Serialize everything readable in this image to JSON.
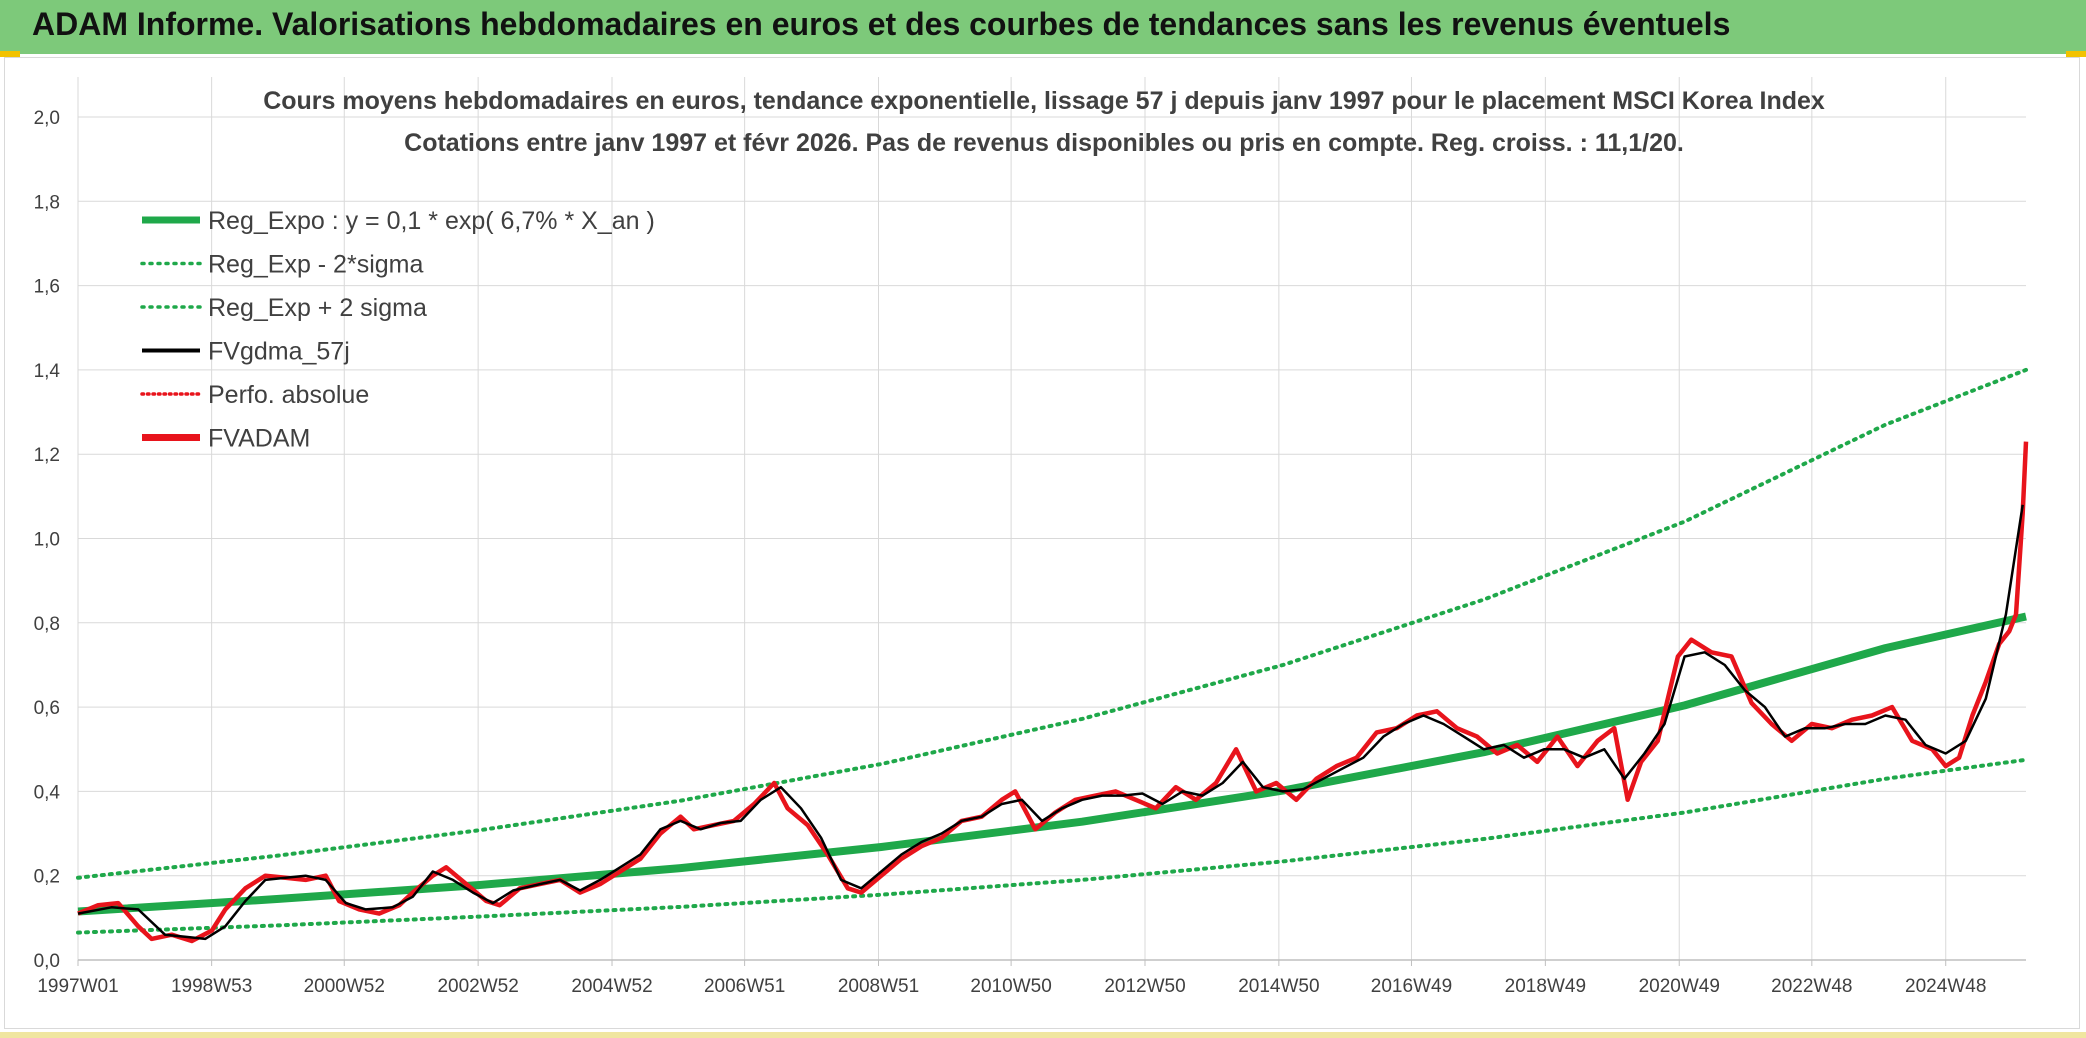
{
  "header": {
    "title": "ADAM Informe. Valorisations hebdomadaires en euros et des courbes de tendances sans les revenus éventuels"
  },
  "colors": {
    "banner": "#7dc97a",
    "regression": "#1fa84a",
    "smoothed": "#000000",
    "price": "#e8141c",
    "grid": "#d9d9d9"
  },
  "chart_data": {
    "type": "line",
    "title": "Cours moyens hebdomadaires en euros, tendance exponentielle, lissage 57 j depuis janv 1997 pour le placement MSCI Korea Index",
    "subtitle": "Cotations entre janv 1997 et févr 2026. Pas de revenus disponibles ou pris en compte. Reg. croiss. : 11,1/20.",
    "xlabel": "",
    "ylabel": "",
    "ylim": [
      0,
      2.0
    ],
    "yticks": [
      "0,0",
      "0,2",
      "0,4",
      "0,6",
      "0,8",
      "1,0",
      "1,2",
      "1,4",
      "1,6",
      "1,8",
      "2,0"
    ],
    "xticks": [
      "1997W01",
      "1998W53",
      "2000W52",
      "2002W52",
      "2004W52",
      "2006W51",
      "2008W51",
      "2010W50",
      "2012W50",
      "2014W50",
      "2016W49",
      "2018W49",
      "2020W49",
      "2022W48",
      "2024W48"
    ],
    "xlim": [
      "1997W01",
      "2026W06"
    ],
    "grid": true,
    "legend_position": "top-left",
    "series": [
      {
        "name": "Reg_Expo : y = 0,1 * exp( 6,7% *  X_an )",
        "style": "solid-thick",
        "color": "#1fa84a",
        "x": [
          1997,
          2000,
          2003,
          2006,
          2009,
          2012,
          2015,
          2018,
          2021,
          2024,
          2026.1
        ],
        "values": [
          0.115,
          0.145,
          0.178,
          0.218,
          0.268,
          0.328,
          0.402,
          0.493,
          0.604,
          0.74,
          0.815
        ]
      },
      {
        "name": "Reg_Exp - 2*sigma",
        "style": "dotted",
        "color": "#1fa84a",
        "x": [
          1997,
          2000,
          2003,
          2006,
          2009,
          2012,
          2015,
          2018,
          2021,
          2024,
          2026.1
        ],
        "values": [
          0.065,
          0.082,
          0.103,
          0.126,
          0.155,
          0.19,
          0.234,
          0.287,
          0.35,
          0.43,
          0.475
        ]
      },
      {
        "name": "Reg_Exp + 2 sigma",
        "style": "dotted",
        "color": "#1fa84a",
        "x": [
          1997,
          2000,
          2003,
          2006,
          2009,
          2012,
          2015,
          2018,
          2021,
          2024,
          2026.1
        ],
        "values": [
          0.195,
          0.248,
          0.308,
          0.378,
          0.465,
          0.572,
          0.7,
          0.855,
          1.04,
          1.27,
          1.4
        ]
      },
      {
        "name": "FVgdma_57j",
        "style": "solid",
        "color": "#000000",
        "x": [
          1997.0,
          1997.5,
          1997.9,
          1998.3,
          1998.6,
          1998.9,
          1999.2,
          1999.5,
          1999.8,
          2000.1,
          2000.4,
          2000.7,
          2001.0,
          2001.3,
          2001.7,
          2002.0,
          2002.3,
          2002.6,
          2002.9,
          2003.2,
          2003.5,
          2003.9,
          2004.2,
          2004.5,
          2004.8,
          2005.1,
          2005.4,
          2005.7,
          2006.0,
          2006.3,
          2006.6,
          2006.9,
          2007.2,
          2007.5,
          2007.8,
          2008.1,
          2008.4,
          2008.7,
          2009.0,
          2009.3,
          2009.6,
          2009.9,
          2010.2,
          2010.5,
          2010.8,
          2011.1,
          2011.4,
          2011.7,
          2012.0,
          2012.3,
          2012.6,
          2012.9,
          2013.2,
          2013.5,
          2013.8,
          2014.1,
          2014.4,
          2014.7,
          2015.0,
          2015.3,
          2015.6,
          2015.9,
          2016.2,
          2016.5,
          2016.8,
          2017.1,
          2017.4,
          2017.7,
          2018.0,
          2018.3,
          2018.6,
          2018.9,
          2019.2,
          2019.5,
          2019.8,
          2020.1,
          2020.4,
          2020.7,
          2021.0,
          2021.3,
          2021.6,
          2021.9,
          2022.2,
          2022.5,
          2022.8,
          2023.1,
          2023.4,
          2023.7,
          2024.0,
          2024.3,
          2024.6,
          2024.9,
          2025.2,
          2025.5,
          2025.8,
          2026.05
        ],
        "values": [
          0.11,
          0.125,
          0.12,
          0.06,
          0.055,
          0.05,
          0.08,
          0.14,
          0.19,
          0.195,
          0.2,
          0.19,
          0.135,
          0.12,
          0.125,
          0.15,
          0.21,
          0.19,
          0.16,
          0.135,
          0.165,
          0.18,
          0.19,
          0.165,
          0.19,
          0.22,
          0.25,
          0.31,
          0.33,
          0.31,
          0.325,
          0.33,
          0.38,
          0.41,
          0.36,
          0.29,
          0.19,
          0.17,
          0.21,
          0.25,
          0.28,
          0.3,
          0.33,
          0.34,
          0.37,
          0.38,
          0.33,
          0.36,
          0.38,
          0.39,
          0.39,
          0.395,
          0.37,
          0.4,
          0.39,
          0.42,
          0.47,
          0.41,
          0.4,
          0.405,
          0.43,
          0.455,
          0.48,
          0.53,
          0.56,
          0.58,
          0.56,
          0.53,
          0.5,
          0.51,
          0.48,
          0.5,
          0.5,
          0.48,
          0.5,
          0.43,
          0.49,
          0.56,
          0.72,
          0.73,
          0.7,
          0.64,
          0.6,
          0.53,
          0.55,
          0.55,
          0.56,
          0.56,
          0.58,
          0.57,
          0.51,
          0.49,
          0.52,
          0.62,
          0.82,
          1.08
        ]
      },
      {
        "name": "Perfo. absolue",
        "style": "dotted",
        "color": "#e8141c",
        "x": [],
        "values": []
      },
      {
        "name": "FVADAM",
        "style": "solid-thick",
        "color": "#e8141c",
        "x": [
          1997.0,
          1997.3,
          1997.6,
          1997.9,
          1998.1,
          1998.4,
          1998.7,
          1999.0,
          1999.2,
          1999.5,
          1999.8,
          2000.1,
          2000.4,
          2000.7,
          2000.9,
          2001.2,
          2001.5,
          2001.8,
          2002.0,
          2002.3,
          2002.5,
          2002.8,
          2003.1,
          2003.3,
          2003.6,
          2003.9,
          2004.2,
          2004.5,
          2004.8,
          2005.1,
          2005.4,
          2005.7,
          2006.0,
          2006.2,
          2006.5,
          2006.8,
          2007.1,
          2007.4,
          2007.6,
          2007.9,
          2008.2,
          2008.5,
          2008.7,
          2009.0,
          2009.3,
          2009.6,
          2009.9,
          2010.2,
          2010.5,
          2010.8,
          2011.0,
          2011.3,
          2011.6,
          2011.9,
          2012.2,
          2012.5,
          2012.8,
          2013.1,
          2013.4,
          2013.7,
          2014.0,
          2014.3,
          2014.6,
          2014.9,
          2015.2,
          2015.5,
          2015.8,
          2016.1,
          2016.4,
          2016.7,
          2017.0,
          2017.3,
          2017.6,
          2017.9,
          2018.2,
          2018.5,
          2018.8,
          2019.1,
          2019.4,
          2019.7,
          2019.95,
          2020.15,
          2020.35,
          2020.6,
          2020.9,
          2021.1,
          2021.4,
          2021.7,
          2022.0,
          2022.3,
          2022.6,
          2022.9,
          2023.2,
          2023.5,
          2023.8,
          2024.1,
          2024.4,
          2024.7,
          2024.9,
          2025.1,
          2025.3,
          2025.5,
          2025.7,
          2025.85,
          2025.95,
          2026.05,
          2026.1
        ],
        "values": [
          0.11,
          0.13,
          0.135,
          0.08,
          0.05,
          0.06,
          0.045,
          0.07,
          0.12,
          0.17,
          0.2,
          0.195,
          0.19,
          0.2,
          0.14,
          0.12,
          0.11,
          0.13,
          0.16,
          0.2,
          0.22,
          0.18,
          0.14,
          0.13,
          0.17,
          0.18,
          0.19,
          0.16,
          0.18,
          0.21,
          0.24,
          0.3,
          0.34,
          0.31,
          0.32,
          0.33,
          0.37,
          0.42,
          0.36,
          0.32,
          0.25,
          0.17,
          0.16,
          0.2,
          0.24,
          0.27,
          0.29,
          0.33,
          0.34,
          0.38,
          0.4,
          0.31,
          0.35,
          0.38,
          0.39,
          0.4,
          0.38,
          0.36,
          0.41,
          0.38,
          0.42,
          0.5,
          0.4,
          0.42,
          0.38,
          0.43,
          0.46,
          0.48,
          0.54,
          0.55,
          0.58,
          0.59,
          0.55,
          0.53,
          0.49,
          0.51,
          0.47,
          0.53,
          0.46,
          0.52,
          0.55,
          0.38,
          0.47,
          0.52,
          0.72,
          0.76,
          0.73,
          0.72,
          0.61,
          0.56,
          0.52,
          0.56,
          0.55,
          0.57,
          0.58,
          0.6,
          0.52,
          0.5,
          0.46,
          0.48,
          0.58,
          0.66,
          0.75,
          0.78,
          0.82,
          1.06,
          1.23
        ]
      }
    ]
  }
}
